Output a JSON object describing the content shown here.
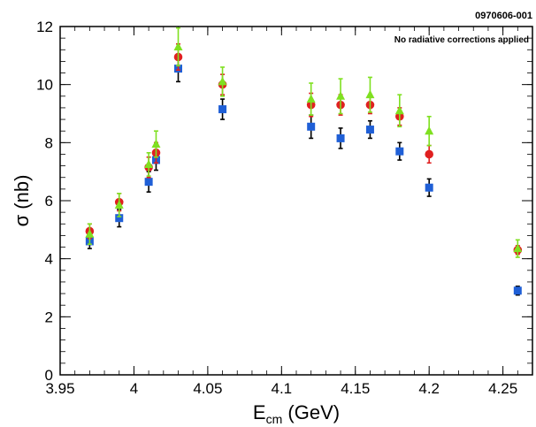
{
  "figure_id": "0970606-001",
  "annotation": "No radiative corrections applied",
  "chart_data": {
    "type": "scatter",
    "title": "",
    "xlabel_main": "E",
    "xlabel_sub": "cm",
    "xlabel_unit": " (GeV)",
    "ylabel": "σ (nb)",
    "xlim": [
      3.95,
      4.27
    ],
    "ylim": [
      0,
      12
    ],
    "x_ticks": [
      3.95,
      4.0,
      4.05,
      4.1,
      4.15,
      4.2,
      4.25
    ],
    "x_tick_labels": [
      "3.95",
      "4",
      "4.05",
      "4.1",
      "4.15",
      "4.2",
      "4.25"
    ],
    "y_ticks": [
      0,
      2,
      4,
      6,
      8,
      10,
      12
    ],
    "y_tick_labels": [
      "0",
      "2",
      "4",
      "6",
      "8",
      "10",
      "12"
    ],
    "grid": false,
    "legend": "none",
    "series": [
      {
        "marker": "square",
        "color": "#1f5fd6",
        "errcolor": "#000000",
        "points": [
          {
            "x": 3.97,
            "y": 4.6,
            "err": 0.25
          },
          {
            "x": 3.99,
            "y": 5.4,
            "err": 0.3
          },
          {
            "x": 4.01,
            "y": 6.65,
            "err": 0.35
          },
          {
            "x": 4.015,
            "y": 7.4,
            "err": 0.35
          },
          {
            "x": 4.03,
            "y": 10.55,
            "err": 0.45
          },
          {
            "x": 4.06,
            "y": 9.15,
            "err": 0.35
          },
          {
            "x": 4.12,
            "y": 8.55,
            "err": 0.4
          },
          {
            "x": 4.14,
            "y": 8.15,
            "err": 0.35
          },
          {
            "x": 4.16,
            "y": 8.45,
            "err": 0.3
          },
          {
            "x": 4.18,
            "y": 7.7,
            "err": 0.3
          },
          {
            "x": 4.2,
            "y": 6.45,
            "err": 0.3
          },
          {
            "x": 4.26,
            "y": 2.9,
            "err": 0.15
          }
        ]
      },
      {
        "marker": "circle",
        "color": "#e02020",
        "errcolor": "#e02020",
        "points": [
          {
            "x": 3.97,
            "y": 4.95,
            "err": 0.25
          },
          {
            "x": 3.99,
            "y": 5.95,
            "err": 0.3
          },
          {
            "x": 4.01,
            "y": 7.15,
            "err": 0.35
          },
          {
            "x": 4.015,
            "y": 7.65,
            "err": 0.35
          },
          {
            "x": 4.03,
            "y": 10.95,
            "err": 0.45
          },
          {
            "x": 4.06,
            "y": 10.0,
            "err": 0.35
          },
          {
            "x": 4.12,
            "y": 9.3,
            "err": 0.4
          },
          {
            "x": 4.14,
            "y": 9.3,
            "err": 0.35
          },
          {
            "x": 4.16,
            "y": 9.3,
            "err": 0.3
          },
          {
            "x": 4.18,
            "y": 8.9,
            "err": 0.3
          },
          {
            "x": 4.2,
            "y": 7.6,
            "err": 0.3
          },
          {
            "x": 4.26,
            "y": 4.3,
            "err": 0.15
          }
        ]
      },
      {
        "marker": "triangle",
        "color": "#7fe020",
        "errcolor": "#7fe020",
        "points": [
          {
            "x": 3.97,
            "y": 4.85,
            "err": 0.35
          },
          {
            "x": 3.99,
            "y": 5.85,
            "err": 0.4
          },
          {
            "x": 4.01,
            "y": 7.25,
            "err": 0.4
          },
          {
            "x": 4.015,
            "y": 7.95,
            "err": 0.45
          },
          {
            "x": 4.03,
            "y": 11.3,
            "err": 0.65
          },
          {
            "x": 4.06,
            "y": 10.1,
            "err": 0.5
          },
          {
            "x": 4.12,
            "y": 9.5,
            "err": 0.55
          },
          {
            "x": 4.14,
            "y": 9.6,
            "err": 0.6
          },
          {
            "x": 4.16,
            "y": 9.65,
            "err": 0.6
          },
          {
            "x": 4.18,
            "y": 9.1,
            "err": 0.55
          },
          {
            "x": 4.2,
            "y": 8.4,
            "err": 0.5
          },
          {
            "x": 4.26,
            "y": 4.35,
            "err": 0.3
          }
        ]
      }
    ]
  }
}
